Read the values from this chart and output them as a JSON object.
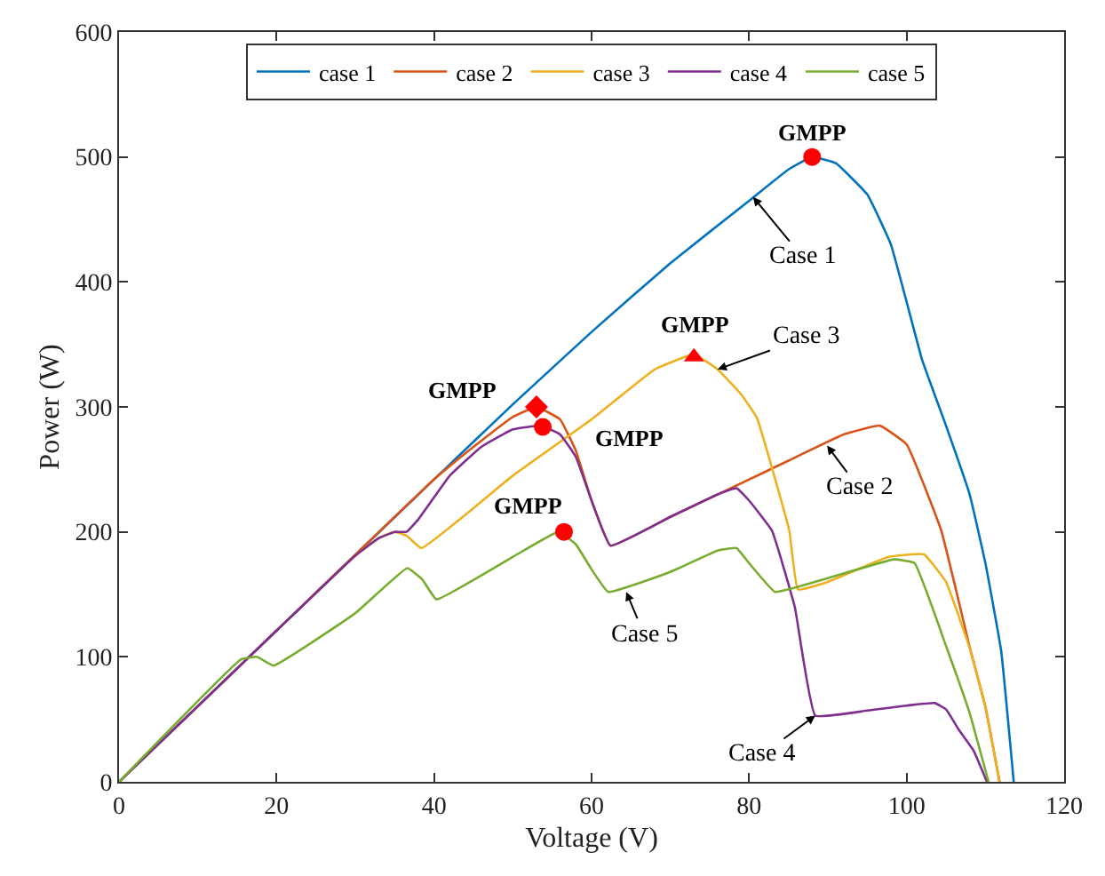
{
  "chart_data": {
    "type": "line",
    "xlabel": "Voltage (V)",
    "ylabel": "Power (W)",
    "xlim": [
      0,
      120
    ],
    "ylim": [
      0,
      600
    ],
    "xticks": [
      0,
      20,
      40,
      60,
      80,
      100,
      120
    ],
    "yticks": [
      0,
      100,
      200,
      300,
      400,
      500,
      600
    ],
    "legend": "top",
    "marker": "none",
    "line_style": "solid",
    "series": [
      {
        "name": "case 1",
        "color": "#0072bd",
        "x": [
          0,
          20,
          40,
          50,
          60,
          70,
          80,
          85,
          88,
          91,
          95,
          98,
          102,
          105,
          108,
          110,
          112,
          113.6
        ],
        "values": [
          0,
          121,
          242,
          302,
          360,
          415,
          465,
          490,
          500,
          495,
          470,
          430,
          337,
          285,
          230,
          175,
          105,
          0
        ]
      },
      {
        "name": "case 2",
        "color": "#d95319",
        "x": [
          0,
          20,
          40,
          45,
          50,
          53,
          56,
          58,
          60,
          62.4,
          70,
          77.7,
          85,
          92,
          96.6,
          100,
          104.4,
          108,
          110,
          111.8
        ],
        "values": [
          0,
          121,
          242,
          268,
          292,
          300,
          290,
          265,
          225,
          189,
          212,
          235,
          257,
          278,
          285,
          270,
          201,
          108,
          60,
          0
        ]
      },
      {
        "name": "case 3",
        "color": "#edb120",
        "x": [
          30,
          33,
          35,
          36.5,
          38.4,
          50,
          60,
          68,
          73,
          76,
          79,
          81,
          85.1,
          86.2,
          90,
          97.7,
          102.2,
          105,
          108,
          110,
          111.8
        ],
        "values": [
          181,
          195,
          200,
          197,
          187,
          245,
          290,
          330,
          342,
          330,
          310,
          291,
          201,
          154,
          160,
          180,
          182,
          160,
          107,
          60,
          0
        ]
      },
      {
        "name": "case 4",
        "color": "#7e2f8e",
        "x": [
          0,
          20,
          30,
          33,
          35,
          36.5,
          38,
          42,
          46,
          50,
          53.5,
          56,
          58,
          60,
          62.4,
          70,
          76,
          78.4,
          80,
          82.9,
          85.8,
          88.4,
          95,
          100,
          103.6,
          105,
          106.6,
          108.5,
          110.2
        ],
        "values": [
          0,
          121,
          181,
          195,
          200,
          200,
          210,
          245,
          268,
          282,
          285,
          278,
          260,
          225,
          189,
          212,
          230,
          235,
          225,
          201,
          140,
          53,
          57,
          61,
          63,
          58,
          42,
          25,
          0
        ]
      },
      {
        "name": "case 5",
        "color": "#77ac30",
        "x": [
          0,
          15.5,
          17.5,
          19.6,
          30,
          36.6,
          38.5,
          40.3,
          50,
          55.8,
          58,
          60,
          62.1,
          70,
          76,
          78.4,
          80,
          83.3,
          90,
          98.4,
          101,
          105.1,
          108,
          110.4
        ],
        "values": [
          0,
          98,
          100,
          93,
          135,
          171,
          162,
          146,
          180,
          200,
          190,
          170,
          152,
          168,
          185,
          187,
          175,
          152,
          163,
          178,
          175,
          107,
          55,
          0
        ]
      },
      {
        "type": "scatter",
        "marker": "circle",
        "color": "#ff0000",
        "x": [
          88
        ],
        "values": [
          500
        ]
      },
      {
        "type": "scatter",
        "marker": "diamond",
        "color": "#ff0000",
        "x": [
          53
        ],
        "values": [
          300
        ]
      },
      {
        "type": "scatter",
        "marker": "triangle",
        "color": "#ff0000",
        "x": [
          73
        ],
        "values": [
          340
        ]
      },
      {
        "type": "scatter",
        "marker": "circle",
        "color": "#ff0000",
        "x": [
          53.8
        ],
        "values": [
          284
        ]
      },
      {
        "type": "scatter",
        "marker": "circle",
        "color": "#ff0000",
        "x": [
          56.5
        ],
        "values": [
          200
        ]
      }
    ],
    "annotations": [
      {
        "text": "GMPP",
        "x": 88,
        "y": 500
      },
      {
        "text": "GMPP",
        "x": 53,
        "y": 300
      },
      {
        "text": "GMPP",
        "x": 73,
        "y": 340
      },
      {
        "text": "GMPP",
        "x": 53.8,
        "y": 284
      },
      {
        "text": "GMPP",
        "x": 56.5,
        "y": 200
      },
      {
        "text": "Case 1",
        "x": 80.5,
        "y": 468
      },
      {
        "text": "Case 2",
        "x": 89.9,
        "y": 269
      },
      {
        "text": "Case 3",
        "x": 76,
        "y": 330
      },
      {
        "text": "Case 4",
        "x": 88.4,
        "y": 53
      },
      {
        "text": "Case 5",
        "x": 64.4,
        "y": 152
      }
    ]
  }
}
